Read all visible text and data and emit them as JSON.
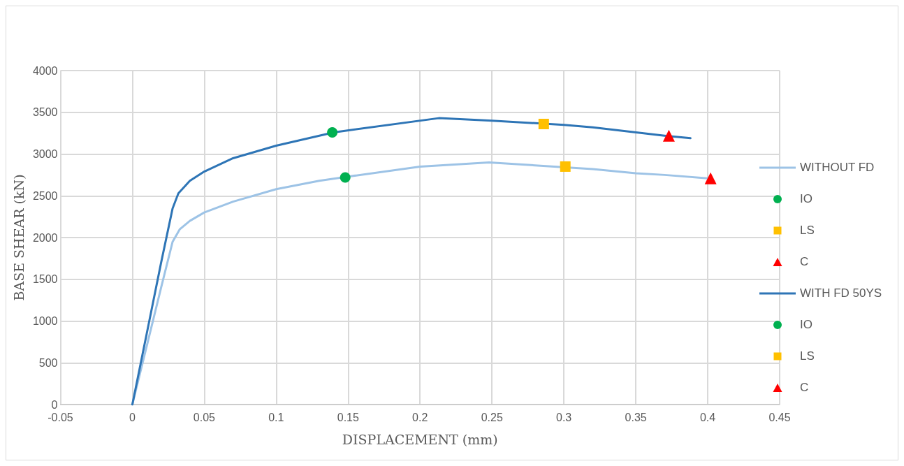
{
  "chart_data": {
    "type": "line",
    "xlabel": "DISPLACEMENT (mm)",
    "ylabel": "BASE SHEAR (kN)",
    "xlim": [
      -0.05,
      0.45
    ],
    "xticks": [
      -0.05,
      0,
      0.05,
      0.1,
      0.15,
      0.2,
      0.25,
      0.3,
      0.35,
      0.4,
      0.45
    ],
    "ylim": [
      0,
      4000
    ],
    "yticks": [
      0,
      500,
      1000,
      1500,
      2000,
      2500,
      3000,
      3500,
      4000
    ],
    "grid": true,
    "legend": "right",
    "series": [
      {
        "name": "WITHOUT FD",
        "color": "#9dc3e6",
        "marker": "none",
        "x": [
          0,
          0.01,
          0.02,
          0.028,
          0.033,
          0.04,
          0.05,
          0.07,
          0.1,
          0.13,
          0.15,
          0.2,
          0.248,
          0.32,
          0.35,
          0.37,
          0.4
        ],
        "values": [
          0,
          700,
          1400,
          1950,
          2100,
          2200,
          2300,
          2430,
          2580,
          2680,
          2730,
          2850,
          2900,
          2820,
          2770,
          2750,
          2710
        ]
      },
      {
        "name": "IO",
        "type": "scatter",
        "color": "#00b050",
        "marker": "circle",
        "x": [
          0.148
        ],
        "values": [
          2720
        ]
      },
      {
        "name": "LS",
        "type": "scatter",
        "color": "#ffc000",
        "marker": "square",
        "x": [
          0.301
        ],
        "values": [
          2850
        ]
      },
      {
        "name": "C",
        "type": "scatter",
        "color": "#ff0000",
        "marker": "triangle",
        "x": [
          0.402
        ],
        "values": [
          2710
        ]
      },
      {
        "name": "WITH FD 50YS",
        "color": "#2e75b6",
        "marker": "none",
        "x": [
          0,
          0.01,
          0.02,
          0.028,
          0.032,
          0.04,
          0.05,
          0.07,
          0.1,
          0.14,
          0.213,
          0.25,
          0.3,
          0.32,
          0.37,
          0.388
        ],
        "values": [
          0,
          850,
          1700,
          2350,
          2530,
          2680,
          2790,
          2950,
          3100,
          3260,
          3430,
          3400,
          3350,
          3320,
          3220,
          3190
        ]
      },
      {
        "name": "IO",
        "type": "scatter",
        "color": "#00b050",
        "marker": "circle",
        "x": [
          0.139
        ],
        "values": [
          3260
        ]
      },
      {
        "name": "LS",
        "type": "scatter",
        "color": "#ffc000",
        "marker": "square",
        "x": [
          0.286
        ],
        "values": [
          3360
        ]
      },
      {
        "name": "C",
        "type": "scatter",
        "color": "#ff0000",
        "marker": "triangle",
        "x": [
          0.373
        ],
        "values": [
          3220
        ]
      }
    ]
  }
}
